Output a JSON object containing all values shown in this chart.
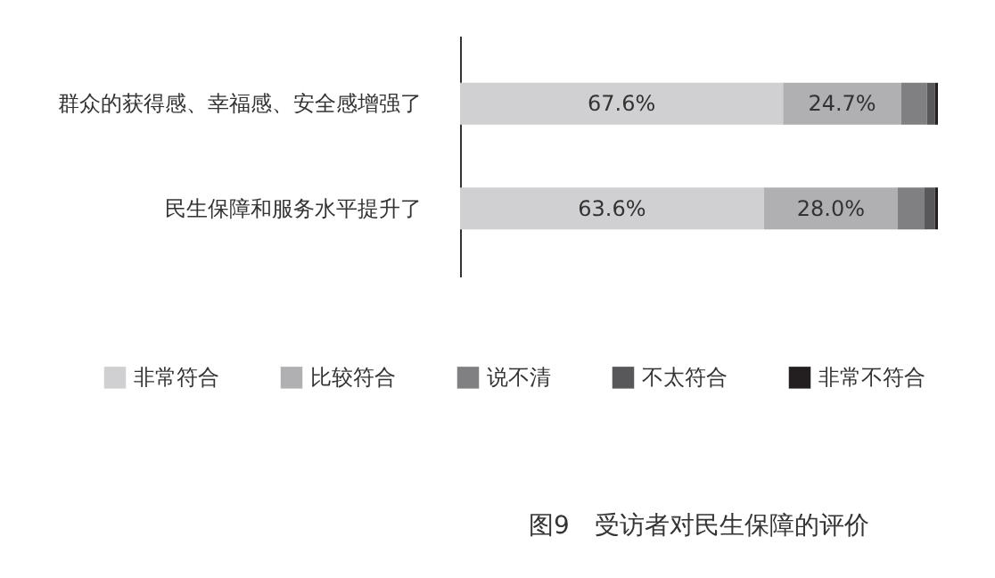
{
  "chart_data": {
    "type": "bar",
    "orientation": "horizontal",
    "stacked": true,
    "title": "图9　受访者对民生保障的评价",
    "categories": [
      "群众的获得感、幸福感、安全感增强了",
      "民生保障和服务水平提升了"
    ],
    "series": [
      {
        "name": "非常符合",
        "color": "#d0d0d2",
        "values": [
          67.6,
          63.6
        ],
        "value_labels": [
          "67.6%",
          "63.6%"
        ]
      },
      {
        "name": "比较符合",
        "color": "#b0b0b3",
        "values": [
          24.7,
          28.0
        ],
        "value_labels": [
          "24.7%",
          "28.0%"
        ]
      },
      {
        "name": "说不清",
        "color": "#808083",
        "values": [
          5.4,
          5.6
        ]
      },
      {
        "name": "不太符合",
        "color": "#58585a",
        "values": [
          1.7,
          2.2
        ]
      },
      {
        "name": "非常不符合",
        "color": "#231f20",
        "values": [
          0.6,
          0.6
        ]
      }
    ],
    "legend": "bottom"
  }
}
